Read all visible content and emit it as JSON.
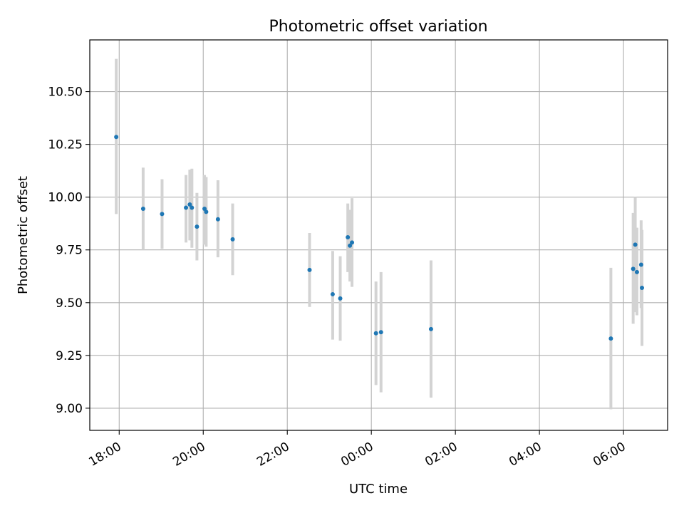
{
  "chart_data": {
    "type": "scatter",
    "title": "Photometric offset variation",
    "xlabel": "UTC time",
    "ylabel": "Photometric offset",
    "x_unit": "hours",
    "xlim": [
      17.3,
      31.05
    ],
    "ylim": [
      8.895,
      10.745
    ],
    "grid": true,
    "colors": {
      "marker": "#1f77b4",
      "errorbar": "#d3d3d3",
      "grid": "#b0b0b0"
    },
    "x_ticks": [
      {
        "value": 18,
        "label": "18:00"
      },
      {
        "value": 20,
        "label": "20:00"
      },
      {
        "value": 22,
        "label": "22:00"
      },
      {
        "value": 24,
        "label": "00:00"
      },
      {
        "value": 26,
        "label": "02:00"
      },
      {
        "value": 28,
        "label": "04:00"
      },
      {
        "value": 30,
        "label": "06:00"
      }
    ],
    "y_ticks": [
      {
        "value": 9.0,
        "label": "9.00"
      },
      {
        "value": 9.25,
        "label": "9.25"
      },
      {
        "value": 9.5,
        "label": "9.50"
      },
      {
        "value": 9.75,
        "label": "9.75"
      },
      {
        "value": 10.0,
        "label": "10.00"
      },
      {
        "value": 10.25,
        "label": "10.25"
      },
      {
        "value": 10.5,
        "label": "10.50"
      }
    ],
    "points": [
      {
        "x": 17.93,
        "y": 10.285,
        "lo": 9.92,
        "hi": 10.655
      },
      {
        "x": 18.57,
        "y": 9.945,
        "lo": 9.75,
        "hi": 10.14
      },
      {
        "x": 19.02,
        "y": 9.92,
        "lo": 9.755,
        "hi": 10.085
      },
      {
        "x": 19.59,
        "y": 9.95,
        "lo": 9.785,
        "hi": 10.105
      },
      {
        "x": 19.68,
        "y": 9.965,
        "lo": 9.795,
        "hi": 10.13
      },
      {
        "x": 19.73,
        "y": 9.95,
        "lo": 9.76,
        "hi": 10.135
      },
      {
        "x": 19.85,
        "y": 9.86,
        "lo": 9.7,
        "hi": 10.02
      },
      {
        "x": 20.03,
        "y": 9.945,
        "lo": 9.775,
        "hi": 10.105
      },
      {
        "x": 20.07,
        "y": 9.93,
        "lo": 9.765,
        "hi": 10.095
      },
      {
        "x": 20.35,
        "y": 9.895,
        "lo": 9.715,
        "hi": 10.08
      },
      {
        "x": 20.7,
        "y": 9.8,
        "lo": 9.63,
        "hi": 9.97
      },
      {
        "x": 22.53,
        "y": 9.655,
        "lo": 9.48,
        "hi": 9.83
      },
      {
        "x": 23.08,
        "y": 9.54,
        "lo": 9.325,
        "hi": 9.745
      },
      {
        "x": 23.26,
        "y": 9.52,
        "lo": 9.32,
        "hi": 9.72
      },
      {
        "x": 23.44,
        "y": 9.81,
        "lo": 9.645,
        "hi": 9.97
      },
      {
        "x": 23.49,
        "y": 9.77,
        "lo": 9.6,
        "hi": 9.94
      },
      {
        "x": 23.54,
        "y": 9.785,
        "lo": 9.575,
        "hi": 9.995
      },
      {
        "x": 24.11,
        "y": 9.355,
        "lo": 9.11,
        "hi": 9.6
      },
      {
        "x": 24.23,
        "y": 9.36,
        "lo": 9.075,
        "hi": 9.645
      },
      {
        "x": 25.42,
        "y": 9.375,
        "lo": 9.05,
        "hi": 9.7
      },
      {
        "x": 29.7,
        "y": 9.33,
        "lo": 8.995,
        "hi": 9.665
      },
      {
        "x": 30.23,
        "y": 9.66,
        "lo": 9.4,
        "hi": 9.925
      },
      {
        "x": 30.28,
        "y": 9.775,
        "lo": 9.455,
        "hi": 10.0
      },
      {
        "x": 30.32,
        "y": 9.645,
        "lo": 9.44,
        "hi": 9.855
      },
      {
        "x": 30.42,
        "y": 9.68,
        "lo": 9.475,
        "hi": 9.89
      },
      {
        "x": 30.44,
        "y": 9.57,
        "lo": 9.295,
        "hi": 9.845
      }
    ]
  }
}
